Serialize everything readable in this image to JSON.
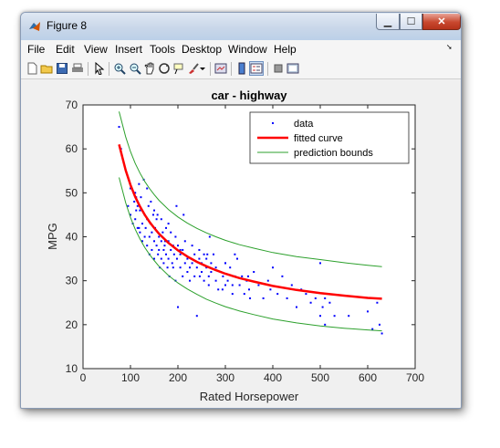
{
  "window": {
    "title": "Figure 8"
  },
  "menu": [
    "File",
    "Edit",
    "View",
    "Insert",
    "Tools",
    "Desktop",
    "Window",
    "Help"
  ],
  "toolbar": [
    "new-figure-icon",
    "open-file-icon",
    "save-icon",
    "print-icon",
    "edit-plot-icon",
    "zoom-in-icon",
    "zoom-out-icon",
    "pan-icon",
    "rotate-3d-icon",
    "data-cursor-icon",
    "brush-icon",
    "brush-dropdown-icon",
    "link-plot-icon",
    "insert-colorbar-icon",
    "insert-legend-icon",
    "hide-plot-tools-icon",
    "show-plot-tools-icon"
  ],
  "chart_data": {
    "type": "scatter",
    "title": "car - highway",
    "xlabel": "Rated Horsepower",
    "ylabel": "MPG",
    "xlim": [
      0,
      700
    ],
    "ylim": [
      10,
      70
    ],
    "xticks": [
      0,
      100,
      200,
      300,
      400,
      500,
      600,
      700
    ],
    "yticks": [
      10,
      20,
      30,
      40,
      50,
      60,
      70
    ],
    "grid": false,
    "legend_position": "top-right",
    "series": [
      {
        "name": "data",
        "kind": "points",
        "color": "#0000ff",
        "x": [
          76,
          80,
          95,
          100,
          100,
          105,
          108,
          110,
          110,
          112,
          115,
          115,
          118,
          120,
          120,
          122,
          125,
          125,
          128,
          130,
          130,
          132,
          135,
          135,
          138,
          140,
          140,
          142,
          145,
          145,
          148,
          150,
          150,
          152,
          155,
          155,
          158,
          160,
          160,
          162,
          165,
          165,
          168,
          170,
          170,
          172,
          175,
          175,
          178,
          180,
          180,
          182,
          185,
          185,
          188,
          190,
          190,
          192,
          195,
          195,
          198,
          200,
          200,
          205,
          205,
          210,
          210,
          215,
          215,
          220,
          220,
          225,
          225,
          230,
          230,
          235,
          235,
          240,
          240,
          245,
          245,
          250,
          250,
          255,
          255,
          260,
          260,
          265,
          265,
          270,
          270,
          275,
          280,
          280,
          285,
          290,
          295,
          300,
          300,
          305,
          310,
          315,
          320,
          325,
          330,
          335,
          340,
          345,
          350,
          360,
          370,
          380,
          390,
          395,
          400,
          410,
          420,
          430,
          440,
          450,
          460,
          470,
          480,
          490,
          500,
          500,
          505,
          510,
          510,
          520,
          530,
          560,
          600,
          610,
          620,
          625,
          630,
          112,
          135,
          150,
          165,
          180,
          118,
          143,
          157,
          173,
          205,
          228,
          246,
          262,
          294,
          315,
          352,
          197,
          212,
          267,
          300,
          320,
          348
        ],
        "y": [
          65,
          60,
          47,
          45,
          51,
          43,
          48,
          44,
          50,
          46,
          42,
          47,
          52,
          41,
          46,
          49,
          43,
          39,
          53,
          40,
          45,
          42,
          38,
          44,
          47,
          40,
          36,
          43,
          41,
          37,
          45,
          39,
          35,
          42,
          38,
          44,
          36,
          40,
          37,
          33,
          39,
          35,
          41,
          37,
          34,
          38,
          42,
          36,
          33,
          39,
          35,
          31,
          37,
          41,
          34,
          38,
          33,
          36,
          30,
          40,
          35,
          38,
          24,
          36,
          33,
          31,
          37,
          34,
          39,
          32,
          35,
          30,
          33,
          38,
          34,
          31,
          36,
          22,
          33,
          35,
          37,
          32,
          34,
          30,
          36,
          33,
          35,
          31,
          29,
          34,
          32,
          36,
          30,
          33,
          28,
          32,
          31,
          29,
          34,
          30,
          33,
          27,
          31,
          35,
          29,
          31,
          27,
          30,
          28,
          32,
          29,
          26,
          30,
          28,
          33,
          27,
          31,
          26,
          29,
          24,
          28,
          27,
          25,
          26,
          34,
          22,
          24,
          20,
          26,
          25,
          22,
          22,
          23,
          19,
          25,
          20,
          18,
          49,
          51,
          46,
          44,
          43,
          42,
          48,
          45,
          39,
          37,
          35,
          31,
          36,
          28,
          29,
          26,
          47,
          45,
          40,
          34,
          36,
          31
        ]
      },
      {
        "name": "fitted curve",
        "kind": "line",
        "color": "#ff0000",
        "linewidth": 2.5,
        "x": [
          76,
          90,
          100,
          110,
          120,
          130,
          140,
          150,
          160,
          180,
          200,
          220,
          240,
          260,
          280,
          300,
          330,
          360,
          400,
          450,
          500,
          550,
          600,
          630
        ],
        "y": [
          61,
          55.1,
          51.8,
          49.1,
          46.9,
          45.0,
          43.4,
          42.0,
          40.7,
          38.6,
          36.9,
          35.5,
          34.3,
          33.3,
          32.4,
          31.6,
          30.6,
          29.8,
          28.8,
          27.9,
          27.2,
          26.6,
          26.1,
          25.9
        ]
      },
      {
        "name": "prediction bounds",
        "kind": "line",
        "color": "#2ca02c",
        "x": [
          76,
          90,
          100,
          110,
          120,
          130,
          140,
          150,
          160,
          180,
          200,
          220,
          240,
          260,
          280,
          300,
          330,
          360,
          400,
          450,
          500,
          550,
          600,
          630
        ],
        "y": [
          68.5,
          62.7,
          59.4,
          56.7,
          54.5,
          52.6,
          51.0,
          49.6,
          48.3,
          46.2,
          44.5,
          43.1,
          41.9,
          40.9,
          40.0,
          39.2,
          38.2,
          37.4,
          36.4,
          35.5,
          34.8,
          34.1,
          33.5,
          33.2
        ]
      },
      {
        "kind": "line",
        "color": "#2ca02c",
        "x": [
          76,
          90,
          100,
          110,
          120,
          130,
          140,
          150,
          160,
          180,
          200,
          220,
          240,
          260,
          280,
          300,
          330,
          360,
          400,
          450,
          500,
          550,
          600,
          630
        ],
        "y": [
          53.5,
          47.7,
          44.4,
          41.7,
          39.5,
          37.6,
          36.0,
          34.6,
          33.3,
          31.2,
          29.5,
          28.1,
          26.9,
          25.8,
          24.9,
          24.1,
          23.1,
          22.3,
          21.3,
          20.4,
          19.7,
          19.2,
          18.8,
          18.6
        ]
      }
    ]
  }
}
